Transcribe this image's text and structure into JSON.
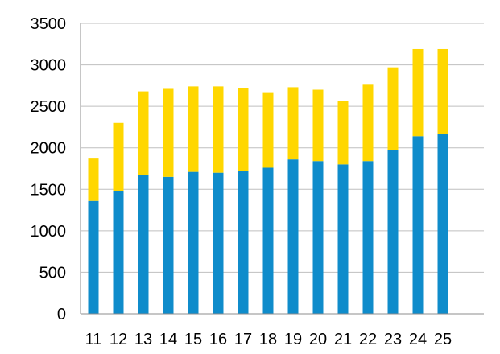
{
  "chart_data": {
    "type": "bar",
    "stacked": true,
    "title": "",
    "xlabel": "",
    "ylabel": "",
    "ylim": [
      0,
      3500
    ],
    "y_ticks": [
      0,
      500,
      1000,
      1500,
      2000,
      2500,
      3000,
      3500
    ],
    "grid": "horizontal",
    "legend": "none",
    "categories": [
      "11",
      "12",
      "13",
      "14",
      "15",
      "16",
      "17",
      "18",
      "19",
      "20",
      "21",
      "22",
      "23",
      "24",
      "25"
    ],
    "series": [
      {
        "color": "#0f8ccb",
        "values": [
          1360,
          1480,
          1670,
          1650,
          1710,
          1700,
          1720,
          1760,
          1860,
          1840,
          1800,
          1840,
          1970,
          2140,
          2170
        ]
      },
      {
        "color": "#ffd700",
        "values": [
          510,
          820,
          1010,
          1060,
          1030,
          1040,
          1000,
          910,
          870,
          860,
          760,
          920,
          1000,
          1050,
          1020
        ]
      }
    ]
  }
}
